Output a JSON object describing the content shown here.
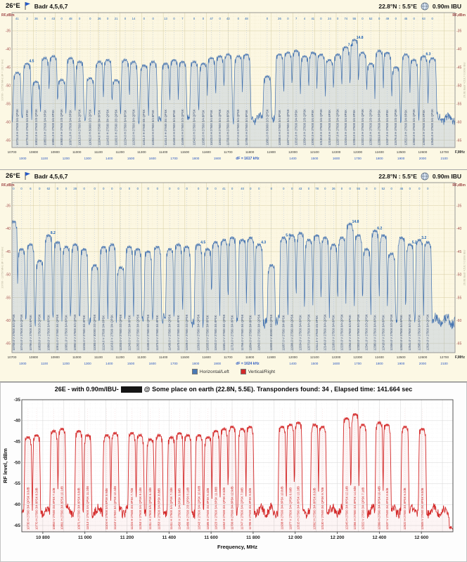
{
  "header": {
    "orbital": "26°E",
    "satellites": "Badr 4,5,6,7",
    "location": "22.8°N : 5.5°E",
    "dish": "0.90m IBU"
  },
  "legend": {
    "items": [
      {
        "label": "Horizontal/Left",
        "color": "#4a7ab5"
      },
      {
        "label": "Vertical/Right",
        "color": "#d42a2a"
      }
    ]
  },
  "summary": {
    "title_prefix": "26E -  with 0.90m/IBU-",
    "title_suffix": "@ Some place on earth (22.8N, 5.5E). Transponders found: 34 , Elapsed time: 141.664 sec",
    "transponders_found": 34,
    "elapsed_time_sec": 141.664,
    "location_text": "Some place on earth (22.8N, 5.5E)"
  },
  "chart_data": [
    {
      "type": "line",
      "name": "horizontal-polarization-spectrum",
      "series_label": "Horizontal/Left",
      "color": "#3f6fae",
      "ylabel": "RF,dBm",
      "xlabel": "F,MHz",
      "x_range": [
        10700,
        12750
      ],
      "y_range": [
        -67,
        -30
      ],
      "yticks": [
        -35,
        -40,
        -45,
        -50,
        -55,
        -60,
        -65
      ],
      "xtick_step": 100,
      "noise_floor_dbm": -59,
      "df_label": "dF = 1617 kHz",
      "df_freq_mhz": 11790,
      "if_row": {
        "low_lo": 9750,
        "low_from": 10750,
        "low_to": 11650,
        "high_lo": 10600,
        "high_from": 12000,
        "high_to": 12700,
        "step": 100
      },
      "edge_note_left": "10700 - 12750 MHz   dF = 1617 kHz",
      "edge_note_right": "26.0E  Badr 4,5,6,7   0.90m IBU",
      "seed": 1,
      "half_mhz": 13,
      "edge_mhz": 14,
      "peaks": [
        {
          "f": 10724,
          "l": -46.5,
          "q": "41",
          "t": "10724.0 H 27500 3/4 QPSK"
        },
        {
          "f": 10770,
          "l": -44.0,
          "q": "2",
          "t": "10770.0 H 27500 3/4 8PSK",
          "n": "4.5"
        },
        {
          "f": 10812,
          "l": -49.0,
          "q": "26",
          "t": "10812.0 H 27500 2/3 QPSK"
        },
        {
          "f": 10853,
          "l": -42.5,
          "q": "0",
          "t": "10853.0 H 27500 3/4 8PSK"
        },
        {
          "f": 10891,
          "l": -42.0,
          "q": "43",
          "t": "10891.0 H 27500 3/4 8PSK"
        },
        {
          "f": 10930,
          "l": -48.5,
          "q": "0",
          "t": "10930.0 H 27500 2/3 QPSK"
        },
        {
          "f": 10971,
          "l": -42.5,
          "q": "48",
          "t": "10971.0 H 27500 3/4 8PSK"
        },
        {
          "f": 11013,
          "l": -43.5,
          "q": "0",
          "t": "11013.0 H 27500 3/4 QPSK"
        },
        {
          "f": 11062,
          "l": -48.0,
          "q": "0",
          "t": "11062.0 H 30000 2/3 QPSK"
        },
        {
          "f": 11104,
          "l": -43.5,
          "q": "26",
          "t": "11104.0 H 27500 3/4 8PSK"
        },
        {
          "f": 11143,
          "l": -43.0,
          "q": "0",
          "t": "11143.0 H 27500 3/4 QPSK"
        },
        {
          "f": 11182,
          "l": -48.5,
          "q": "21",
          "t": "11182.0 H 27500 2/3 QPSK"
        },
        {
          "f": 11224,
          "l": -43.0,
          "q": "0",
          "t": "11224.0 H 27500 3/4 8PSK"
        },
        {
          "f": 11263,
          "l": -43.5,
          "q": "14",
          "t": "11263.0 H 27500 3/4 QPSK"
        },
        {
          "f": 11311,
          "l": -44.5,
          "q": "0",
          "t": "11311.0 H 27500 5/6 QPSK"
        },
        {
          "f": 11353,
          "l": -43.5,
          "q": "0",
          "t": "11353.0 H 27500 3/4 8PSK"
        },
        {
          "f": 11411,
          "l": -44.0,
          "q": "13",
          "t": "11411.0 H 27500 3/4 QPSK"
        },
        {
          "f": 11450,
          "l": -43.0,
          "q": "0",
          "t": "11450.0 H 27500 3/4 8PSK"
        },
        {
          "f": 11489,
          "l": -43.5,
          "q": "7",
          "t": "11489.0 H 27500 2/3 QPSK"
        },
        {
          "f": 11543,
          "l": -43.5,
          "q": "0",
          "t": "11543.0 H 27500 3/4 QPSK"
        },
        {
          "f": 11585,
          "l": -44.0,
          "q": "0",
          "t": "11585.0 H 27500 3/4 8PSK"
        },
        {
          "f": 11623,
          "l": -42.5,
          "q": "47",
          "t": "11623.0 H 27500 3/4 8PSK"
        },
        {
          "f": 11662,
          "l": -42.0,
          "q": "0",
          "t": "11662.0 H 27500 3/4 QPSK"
        },
        {
          "f": 11700,
          "l": -41.5,
          "q": "43",
          "t": "11700.0 H 27500 3/4 8PSK"
        },
        {
          "f": 11747,
          "l": -42.0,
          "q": "0",
          "t": "11747.0 H 27500 3/4 QPSK"
        },
        {
          "f": 11785,
          "l": -41.5,
          "q": "48",
          "t": "11785.0 H 27500 3/4 8PSK"
        },
        {
          "f": 11881,
          "l": -47.5,
          "q": "0",
          "t": "11881.0 H 30000 2/3 QPSK"
        },
        {
          "f": 11938,
          "l": -41.5,
          "q": "26",
          "t": "11938.0 H 27500 3/4 8PSK"
        },
        {
          "f": 11977,
          "l": -41.0,
          "q": "0",
          "t": "11977.0 H 27500 3/4 QPSK"
        },
        {
          "f": 12015,
          "l": -40.5,
          "q": "7",
          "t": "12015.0 H 27500 3/4 8PSK"
        },
        {
          "f": 12054,
          "l": -42.0,
          "q": "4",
          "t": "12054.0 H 27500 2/3 QPSK"
        },
        {
          "f": 12092,
          "l": -41.0,
          "q": "41",
          "t": "12092.0 H 27500 3/4 8PSK"
        },
        {
          "f": 12130,
          "l": -41.5,
          "q": "0",
          "t": "12130.0 H 27500 3/4 QPSK"
        },
        {
          "f": 12169,
          "l": -43.0,
          "q": "24",
          "t": "12169.0 H 27500 3/4 8PSK"
        },
        {
          "f": 12207,
          "l": -41.5,
          "q": "0",
          "t": "12207.0 H 27500 3/4 QPSK"
        },
        {
          "f": 12245,
          "l": -39.5,
          "q": "74",
          "t": "12245.0 H 27500 3/4 8PSK",
          "n": "7.4"
        },
        {
          "f": 12284,
          "l": -37.5,
          "q": "55",
          "t": "12284.0 H 27500 3/4 8PSK",
          "n": "14.8"
        },
        {
          "f": 12322,
          "l": -41.0,
          "q": "0",
          "t": "12322.0 H 27500 3/4 QPSK"
        },
        {
          "f": 12360,
          "l": -44.0,
          "q": "52",
          "t": "12360.0 H 27500 2/3 QPSK"
        },
        {
          "f": 12399,
          "l": -40.5,
          "q": "0",
          "t": "12399.0 H 27500 3/4 8PSK"
        },
        {
          "f": 12437,
          "l": -41.0,
          "q": "49",
          "t": "12437.0 H 27500 3/4 8PSK"
        },
        {
          "f": 12476,
          "l": -45.0,
          "q": "0",
          "t": "12476.0 H 27500 2/3 QPSK"
        },
        {
          "f": 12522,
          "l": -41.5,
          "q": "45",
          "t": "12522.0 H 27500 3/4 8PSK"
        },
        {
          "f": 12560,
          "l": -43.0,
          "q": "0",
          "t": "12560.0 H 27500 3/4 QPSK"
        },
        {
          "f": 12605,
          "l": -42.0,
          "q": "63",
          "t": "12605.0 H 27500 3/4 8PSK",
          "n": "6.3"
        },
        {
          "f": 12645,
          "l": -42.5,
          "q": "0",
          "t": "12645.0 H 27500 3/4 QPSK"
        }
      ]
    },
    {
      "type": "line",
      "name": "vertical-polarization-spectrum",
      "series_label": "Vertical/Right",
      "color": "#3f6fae",
      "ylabel": "RF,dBm",
      "xlabel": "F,MHz",
      "x_range": [
        10700,
        12750
      ],
      "y_range": [
        -67,
        -30
      ],
      "yticks": [
        -35,
        -40,
        -45,
        -50,
        -55,
        -60,
        -65
      ],
      "xtick_step": 100,
      "noise_floor_dbm": -60,
      "df_label": "dF = 1624 kHz",
      "df_freq_mhz": 11790,
      "if_row": {
        "low_lo": 9750,
        "low_from": 10750,
        "low_to": 11650,
        "high_lo": 10600,
        "high_from": 12000,
        "high_to": 12700,
        "step": 100
      },
      "edge_note_left": "10700 - 12750 MHz   dF = 1624 kHz",
      "edge_note_right": "26.0E  Badr 4,5,6,7   0.90m IBU",
      "seed": 2,
      "half_mhz": 13,
      "edge_mhz": 11,
      "peaks": [
        {
          "f": 10708,
          "l": -38.5,
          "q": "0",
          "t": "10708.0 V 27500 3/4 QPSK"
        },
        {
          "f": 10744,
          "l": -44.5,
          "q": "0",
          "t": "10744.0 V 27500 3/4 QPSK"
        },
        {
          "f": 10786,
          "l": -43.5,
          "q": "6",
          "t": "10786.0 V 27500 3/4 8PSK"
        },
        {
          "f": 10828,
          "l": -47.0,
          "q": "0",
          "t": "10828.0 V 27500 2/3 QPSK"
        },
        {
          "f": 10869,
          "l": -41.5,
          "q": "62",
          "t": "10869.0 V 27500 3/4 8PSK",
          "n": "8.2"
        },
        {
          "f": 10911,
          "l": -43.0,
          "q": "0",
          "t": "10911.0 V 27500 3/4 QPSK"
        },
        {
          "f": 10951,
          "l": -44.0,
          "q": "0",
          "t": "10951.0 V 27500 3/4 8PSK"
        },
        {
          "f": 10992,
          "l": -43.5,
          "q": "28",
          "t": "10992.0 V 27500 3/4 QPSK"
        },
        {
          "f": 11034,
          "l": -44.5,
          "q": "0",
          "t": "11034.0 V 27500 3/4 8PSK"
        },
        {
          "f": 11083,
          "l": -48.0,
          "q": "0",
          "t": "11083.0 V 30000 2/3 QPSK"
        },
        {
          "f": 11124,
          "l": -44.0,
          "q": "0",
          "t": "11124.0 V 27500 3/4 8PSK"
        },
        {
          "f": 11163,
          "l": -43.5,
          "q": "0",
          "t": "11163.0 V 27500 3/4 QPSK"
        },
        {
          "f": 11203,
          "l": -48.5,
          "q": "0",
          "t": "11203.0 V 27500 2/3 QPSK"
        },
        {
          "f": 11243,
          "l": -44.0,
          "q": "0",
          "t": "11243.0 V 27500 3/4 8PSK"
        },
        {
          "f": 11282,
          "l": -44.5,
          "q": "0",
          "t": "11282.0 V 27500 3/4 QPSK"
        },
        {
          "f": 11330,
          "l": -45.0,
          "q": "0",
          "t": "11330.0 V 27500 5/6 QPSK"
        },
        {
          "f": 11373,
          "l": -44.0,
          "q": "0",
          "t": "11373.0 V 27500 3/4 8PSK"
        },
        {
          "f": 11430,
          "l": -44.5,
          "q": "0",
          "t": "11430.0 V 27500 3/4 QPSK"
        },
        {
          "f": 11470,
          "l": -43.5,
          "q": "0",
          "t": "11470.0 V 27500 3/4 8PSK"
        },
        {
          "f": 11509,
          "l": -44.0,
          "q": "0",
          "t": "11509.0 V 27500 2/3 QPSK"
        },
        {
          "f": 11563,
          "l": -43.5,
          "q": "0",
          "t": "11563.0 V 27500 3/4 QPSK",
          "n": "4.5"
        },
        {
          "f": 11605,
          "l": -44.5,
          "q": "0",
          "t": "11605.0 V 27500 3/4 8PSK"
        },
        {
          "f": 11642,
          "l": -43.0,
          "q": "0",
          "t": "11642.0 V 27500 3/4 8PSK"
        },
        {
          "f": 11681,
          "l": -42.5,
          "q": "41",
          "t": "11681.0 V 27500 3/4 QPSK"
        },
        {
          "f": 11719,
          "l": -42.0,
          "q": "0",
          "t": "11719.0 V 27500 3/4 8PSK"
        },
        {
          "f": 11766,
          "l": -42.5,
          "q": "40",
          "t": "11766.0 V 27500 3/4 QPSK"
        },
        {
          "f": 11804,
          "l": -42.0,
          "q": "0",
          "t": "11804.0 V 27500 3/4 8PSK"
        },
        {
          "f": 11843,
          "l": -43.5,
          "q": "0",
          "t": "11843.0 V 27500 3/4 QPSK",
          "n": "4.3"
        },
        {
          "f": 11900,
          "l": -48.0,
          "q": "0",
          "t": "11900.0 V 30000 2/3 QPSK"
        },
        {
          "f": 11957,
          "l": -42.0,
          "q": "0",
          "t": "11957.0 V 27500 3/4 8PSK",
          "n": "5.6"
        },
        {
          "f": 11996,
          "l": -41.5,
          "q": "0",
          "t": "11996.0 V 27500 3/4 QPSK"
        },
        {
          "f": 12034,
          "l": -41.0,
          "q": "43",
          "t": "12034.0 V 27500 3/4 8PSK"
        },
        {
          "f": 12073,
          "l": -42.5,
          "q": "0",
          "t": "12073.0 V 27500 3/4 QPSK"
        },
        {
          "f": 12111,
          "l": -41.5,
          "q": "78",
          "t": "12111.0 V 27500 3/4 8PSK"
        },
        {
          "f": 12149,
          "l": -42.0,
          "q": "0",
          "t": "12149.0 V 27500 3/4 QPSK"
        },
        {
          "f": 12188,
          "l": -43.5,
          "q": "26",
          "t": "12188.0 V 27500 3/4 8PSK"
        },
        {
          "f": 12226,
          "l": -42.0,
          "q": "0",
          "t": "12226.0 V 27500 3/4 QPSK"
        },
        {
          "f": 12264,
          "l": -39.0,
          "q": "0",
          "t": "12264.0 V 27500 3/4 8PSK",
          "n": "14.8"
        },
        {
          "f": 12303,
          "l": -41.5,
          "q": "55",
          "t": "12303.0 V 27500 3/4 QPSK"
        },
        {
          "f": 12341,
          "l": -44.5,
          "q": "0",
          "t": "12341.0 V 27500 2/3 QPSK"
        },
        {
          "f": 12380,
          "l": -40.5,
          "q": "0",
          "t": "12380.0 V 27500 3/4 8PSK",
          "n": "6.2"
        },
        {
          "f": 12418,
          "l": -41.5,
          "q": "52",
          "t": "12418.0 V 27500 3/4 8PSK"
        },
        {
          "f": 12456,
          "l": -45.5,
          "q": "0",
          "t": "12456.0 V 27500 2/3 QPSK"
        },
        {
          "f": 12502,
          "l": -42.0,
          "q": "45",
          "t": "12502.0 V 27500 3/4 8PSK"
        },
        {
          "f": 12541,
          "l": -43.5,
          "q": "0",
          "t": "12541.0 V 27500 3/4 QPSK",
          "n": "5.2"
        },
        {
          "f": 12585,
          "l": -42.5,
          "q": "0",
          "t": "12585.0 V 27500 3/4 8PSK",
          "n": "3.2"
        },
        {
          "f": 12624,
          "l": -43.0,
          "q": "0",
          "t": "12624.0 V 27500 3/4 QPSK"
        }
      ]
    },
    {
      "type": "line",
      "name": "found-transponders-spectrum",
      "color": "#d42a2a",
      "ylabel": "RF level, dBm",
      "xlabel": "Frequency, MHz",
      "x_range": [
        10700,
        12750
      ],
      "y_range": [
        -66.5,
        -35
      ],
      "yticks": [
        -35,
        -40,
        -45,
        -50,
        -55,
        -60,
        -65
      ],
      "xticks": [
        {
          "f": 10800,
          "label": "10 800"
        },
        {
          "f": 11000,
          "label": "11 000"
        },
        {
          "f": 11200,
          "label": "11 200"
        },
        {
          "f": 11400,
          "label": "11 400"
        },
        {
          "f": 11600,
          "label": "11 600"
        },
        {
          "f": 11800,
          "label": "11 800"
        },
        {
          "f": 12000,
          "label": "12 000"
        },
        {
          "f": 12200,
          "label": "12 200"
        },
        {
          "f": 12400,
          "label": "12 400"
        },
        {
          "f": 12600,
          "label": "12 600"
        }
      ],
      "noise_floor_dbm": -61.5,
      "seed": 3,
      "half_mhz": 13,
      "edge_mhz": 11,
      "tail_steps": [
        [
          12650,
          -52.5
        ],
        [
          12682,
          -56.5
        ],
        [
          12708,
          -60.5
        ],
        [
          12732,
          -65.5
        ]
      ],
      "transponders_found": 34,
      "peaks": [
        {
          "f": 10730,
          "l": -44.0,
          "t": "10730 H 27500 3/4 QPSK 9.6dB"
        },
        {
          "f": 10770,
          "l": -43.5,
          "t": "10770 H 27500 3/4 8PSK 8.2dB"
        },
        {
          "f": 10853,
          "l": -42.5,
          "t": "10853 V 27500 3/4 8PSK 7.4dB"
        },
        {
          "f": 10891,
          "l": -42.0,
          "t": "10891 H 27500 3/4 8PSK 10.1dB"
        },
        {
          "f": 10971,
          "l": -42.5,
          "t": "10971 H 27500 3/4 8PSK 6.8dB"
        },
        {
          "f": 11013,
          "l": -43.5,
          "t": "11013 V 27500 3/4 QPSK 11.2dB"
        },
        {
          "f": 11104,
          "l": -43.5,
          "t": "11104 H 27500 3/4 8PSK 5.9dB"
        },
        {
          "f": 11143,
          "l": -43.0,
          "t": "11143 V 27500 3/4 QPSK 12.4dB"
        },
        {
          "f": 11224,
          "l": -43.0,
          "t": "11224 H 27500 3/4 8PSK 7.7dB"
        },
        {
          "f": 11263,
          "l": -43.5,
          "t": "11263 V 27500 3/4 QPSK 9.1dB"
        },
        {
          "f": 11311,
          "l": -44.5,
          "t": "11311 H 27500 5/6 QPSK 6.4dB"
        },
        {
          "f": 11353,
          "l": -43.5,
          "t": "11353 V 27500 3/4 8PSK 8.8dB"
        },
        {
          "f": 11411,
          "l": -44.0,
          "t": "11411 H 27500 3/4 QPSK 7.2dB"
        },
        {
          "f": 11450,
          "l": -43.0,
          "t": "11450 V 27500 3/4 8PSK 9.9dB"
        },
        {
          "f": 11489,
          "l": -43.5,
          "t": "11489 H 27500 2/3 QPSK 6.1dB"
        },
        {
          "f": 11543,
          "l": -43.5,
          "t": "11543 V 27500 3/4 QPSK 10.6dB"
        },
        {
          "f": 11585,
          "l": -44.0,
          "t": "11585 H 27500 3/4 8PSK 5.4dB"
        },
        {
          "f": 11623,
          "l": -42.5,
          "t": "11623 V 27500 3/4 8PSK 11.8dB"
        },
        {
          "f": 11662,
          "l": -42.0,
          "t": "11662 H 27500 3/4 QPSK 8.5dB"
        },
        {
          "f": 11700,
          "l": -41.5,
          "t": "11700 H 27500 3/4 8PSK 12.9dB"
        },
        {
          "f": 11747,
          "l": -42.0,
          "t": "11747 V 27500 3/4 QPSK 7.9dB"
        },
        {
          "f": 11785,
          "l": -41.5,
          "t": "11785 H 27500 3/4 8PSK 9.3dB"
        },
        {
          "f": 11938,
          "l": -41.5,
          "t": "11938 H 27500 3/4 8PSK 10.8dB"
        },
        {
          "f": 11977,
          "l": -41.0,
          "t": "11977 V 27500 3/4 QPSK 6.6dB"
        },
        {
          "f": 12015,
          "l": -40.5,
          "t": "12015 H 27500 3/4 8PSK 13.2dB"
        },
        {
          "f": 12092,
          "l": -41.0,
          "t": "12092 H 27500 3/4 8PSK 8.0dB"
        },
        {
          "f": 12130,
          "l": -41.5,
          "t": "12130 V 27500 3/4 QPSK 9.7dB"
        },
        {
          "f": 12245,
          "l": -39.5,
          "t": "12245 H 27500 3/4 8PSK 12.1dB"
        },
        {
          "f": 12284,
          "l": -38.5,
          "t": "12284 H 27500 3/4 8PSK 14.8dB"
        },
        {
          "f": 12322,
          "l": -41.0,
          "t": "12322 V 27500 3/4 QPSK 7.1dB"
        },
        {
          "f": 12399,
          "l": -40.5,
          "t": "12399 H 27500 3/4 8PSK 10.4dB"
        },
        {
          "f": 12437,
          "l": -41.0,
          "t": "12437 V 27500 3/4 8PSK 8.9dB"
        },
        {
          "f": 12522,
          "l": -41.5,
          "t": "12522 H 27500 3/4 8PSK 6.2dB"
        },
        {
          "f": 12605,
          "l": -42.0,
          "t": "12605 V 27500 3/4 8PSK 9.0dB"
        }
      ]
    }
  ]
}
